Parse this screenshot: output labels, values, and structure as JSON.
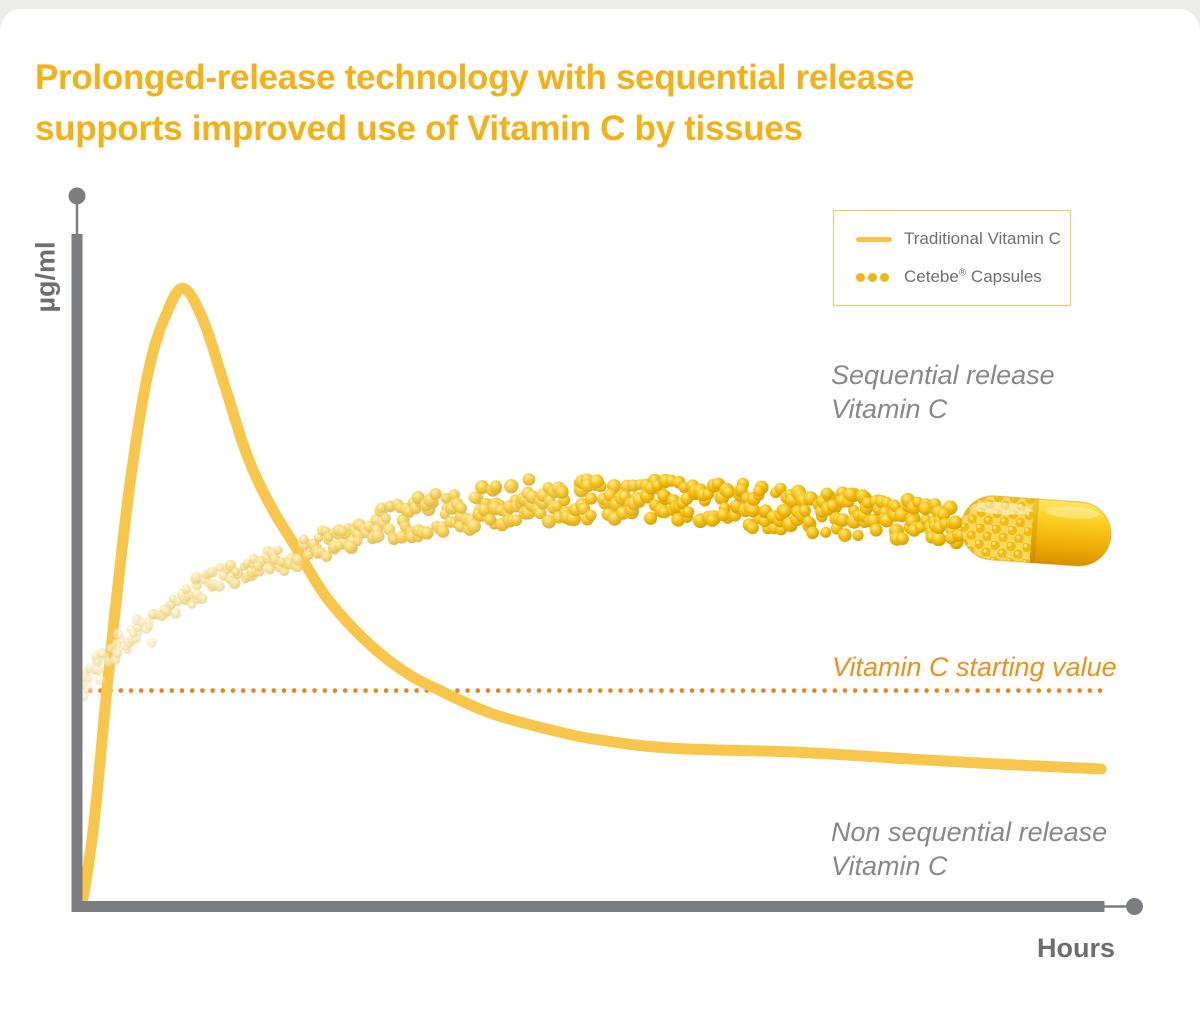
{
  "window": {
    "background": "#ECECEA",
    "card_background": "#FFFFFF"
  },
  "title": {
    "lines": [
      "Prolonged-release technology with sequential release",
      "supports improved use of Vitamin C by tissues"
    ],
    "color": "#F3B117"
  },
  "y_axis_label": "µg/ml",
  "x_axis_label": "Hours",
  "legend": {
    "border_color": "#F3C85F",
    "items": [
      {
        "swatch": "line",
        "color": "#F6C449",
        "label": "Traditional Vitamin C"
      },
      {
        "swatch": "dots",
        "color": "#F0B70F",
        "label_pre": "Cetebe",
        "label_reg": "®",
        "label_post": " Capsules"
      }
    ]
  },
  "annotations": {
    "sequential": {
      "lines": [
        "Sequential release",
        "Vitamin C"
      ],
      "color": "#87888B"
    },
    "starting_value": {
      "text": "Vitamin C starting value",
      "color": "#EF8F1B"
    },
    "non_sequential": {
      "lines": [
        "Non sequential release",
        "Vitamin C"
      ],
      "color": "#87888B"
    }
  },
  "chart_data": {
    "type": "line",
    "title": "Prolonged-release technology with sequential release supports improved use of Vitamin C by tissues",
    "xlabel": "Hours",
    "ylabel": "µg/ml",
    "x_range_hours": [
      0,
      13
    ],
    "y_range": [
      0,
      100
    ],
    "grid": false,
    "legend_position": "top-right",
    "axis_style": "thick-gray-bars-with-circle-arrow-ends",
    "starting_value": 32,
    "starting_value_line": {
      "style": "dotted",
      "color": "#E8831C"
    },
    "series": [
      {
        "name": "Traditional Vitamin C",
        "style": "solid",
        "color": "#F8C64B",
        "stroke_width": 11,
        "points": [
          [
            0,
            0
          ],
          [
            0.15,
            12
          ],
          [
            0.35,
            36
          ],
          [
            0.6,
            62
          ],
          [
            0.85,
            80
          ],
          [
            1.1,
            89
          ],
          [
            1.3,
            92
          ],
          [
            1.55,
            87
          ],
          [
            1.8,
            78
          ],
          [
            2.1,
            67
          ],
          [
            2.4,
            59.5
          ],
          [
            2.7,
            53.7
          ],
          [
            3.1,
            46
          ],
          [
            3.6,
            39.5
          ],
          [
            4.1,
            34.8
          ],
          [
            4.55,
            32
          ],
          [
            5.2,
            28.6
          ],
          [
            6,
            26
          ],
          [
            6.6,
            24.6
          ],
          [
            7.5,
            23.4
          ],
          [
            9.1,
            22.8
          ],
          [
            10.5,
            21.8
          ],
          [
            11.7,
            21
          ],
          [
            12.95,
            20.3
          ]
        ]
      },
      {
        "name": "Cetebe® Capsules",
        "style": "bead-band",
        "color_start": "#F6E5AE",
        "color_end": "#F2BB10",
        "points": [
          [
            0.05,
            34.2
          ],
          [
            0.45,
            38.5
          ],
          [
            0.86,
            42.5
          ],
          [
            1.5,
            47.5
          ],
          [
            1.9,
            49.5
          ],
          [
            2.77,
            52.5
          ],
          [
            3.5,
            56
          ],
          [
            4.5,
            58.5
          ],
          [
            5.6,
            60.3
          ],
          [
            6.6,
            60.8
          ],
          [
            7.6,
            60.3
          ],
          [
            8.8,
            59.3
          ],
          [
            10,
            58.1
          ],
          [
            11.2,
            56.6
          ]
        ]
      }
    ],
    "capsule": {
      "center_hours": 12.13,
      "center_value": 55.8,
      "rotation_deg": 4
    }
  }
}
